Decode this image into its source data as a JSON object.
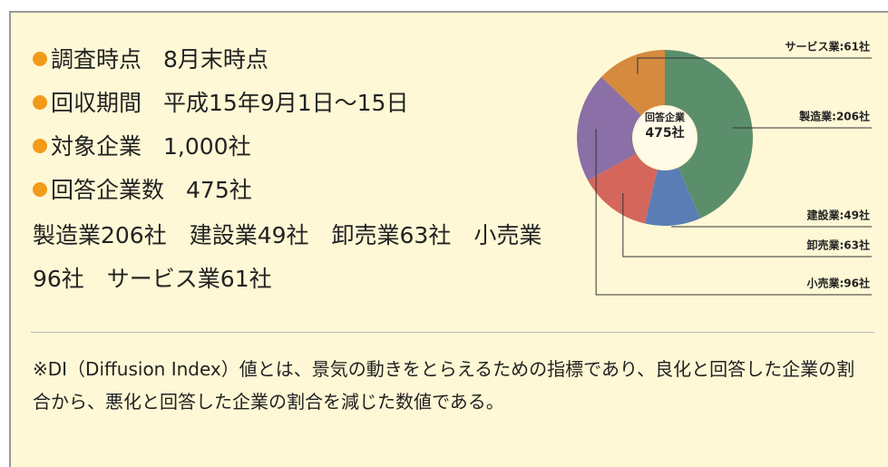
{
  "items": [
    {
      "label": "調査時点",
      "value": "8月末時点"
    },
    {
      "label": "回収期間",
      "value": "平成15年9月1日～15日"
    },
    {
      "label": "対象企業",
      "value": "1,000社"
    },
    {
      "label": "回答企業数",
      "value": "475社"
    }
  ],
  "breakdown": "製造業206社　建設業49社　卸売業63社　小売業96社　サービス業61社",
  "note": "※DI（Diffusion Index）値とは、景気の動きをとらえるための指標であり、良化と回答した企業の割合から、悪化と回答した企業の割合を減じた数値である。",
  "chart_data": {
    "type": "donut",
    "center_label": "回答企業",
    "total_label": "475社",
    "values": [
      206,
      49,
      63,
      96,
      61
    ],
    "value_labels": [
      "製造業:206社",
      "建設業:49社",
      "卸売業:63社",
      "小売業:96社",
      "サービス業:61社"
    ],
    "colors": [
      "#5b8f6b",
      "#5a7db5",
      "#d5665b",
      "#8a70a6",
      "#d58a3e"
    ]
  }
}
